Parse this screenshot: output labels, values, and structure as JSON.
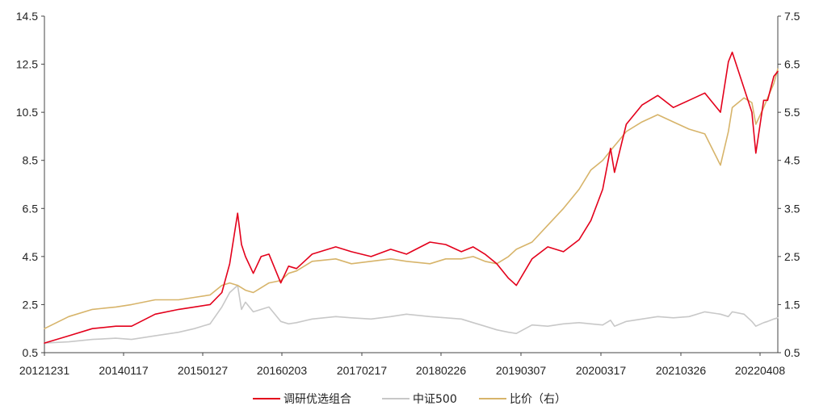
{
  "chart_data": {
    "type": "line",
    "title": "",
    "xlabel": "",
    "ylabel": "",
    "x_ticks": [
      "20121231",
      "20140117",
      "20150127",
      "20160203",
      "20170217",
      "20180226",
      "20190307",
      "20200317",
      "20210326",
      "20220408"
    ],
    "y_left": {
      "ticks": [
        "0.5",
        "2.5",
        "4.5",
        "6.5",
        "8.5",
        "10.5",
        "12.5",
        "14.5"
      ],
      "ylim": [
        0.5,
        14.5
      ]
    },
    "y_right": {
      "ticks": [
        "0.5",
        "1.5",
        "2.5",
        "3.5",
        "4.5",
        "5.5",
        "6.5",
        "7.5"
      ],
      "ylim": [
        0.5,
        7.5
      ]
    },
    "grid": false,
    "legend_position": "bottom",
    "series": [
      {
        "name": "调研优选组合",
        "axis": "left",
        "color": "#e3001b",
        "x": [
          2012.99,
          2013.3,
          2013.6,
          2013.9,
          2014.1,
          2014.4,
          2014.7,
          2014.9,
          2015.1,
          2015.25,
          2015.35,
          2015.45,
          2015.5,
          2015.55,
          2015.65,
          2015.75,
          2015.85,
          2016.0,
          2016.1,
          2016.2,
          2016.4,
          2016.7,
          2016.9,
          2017.15,
          2017.4,
          2017.6,
          2017.9,
          2018.1,
          2018.3,
          2018.45,
          2018.6,
          2018.75,
          2018.9,
          2019.0,
          2019.2,
          2019.4,
          2019.6,
          2019.8,
          2019.95,
          2020.1,
          2020.2,
          2020.25,
          2020.4,
          2020.6,
          2020.8,
          2021.0,
          2021.2,
          2021.4,
          2021.6,
          2021.7,
          2021.75,
          2021.9,
          2022.0,
          2022.05,
          2022.15,
          2022.2,
          2022.28,
          2022.33
        ],
        "values": [
          0.9,
          1.2,
          1.5,
          1.6,
          1.6,
          2.1,
          2.3,
          2.4,
          2.5,
          3.0,
          4.2,
          6.3,
          5.0,
          4.5,
          3.8,
          4.5,
          4.6,
          3.4,
          4.1,
          4.0,
          4.6,
          4.9,
          4.7,
          4.5,
          4.8,
          4.6,
          5.1,
          5.0,
          4.7,
          4.9,
          4.6,
          4.2,
          3.6,
          3.3,
          4.4,
          4.9,
          4.7,
          5.2,
          6.0,
          7.3,
          9.0,
          8.0,
          10.0,
          10.8,
          11.2,
          10.7,
          11.0,
          11.3,
          10.5,
          12.6,
          13.0,
          11.5,
          10.5,
          8.8,
          11.0,
          11.0,
          12.0,
          12.2
        ]
      },
      {
        "name": "中证500",
        "axis": "left",
        "color": "#c8c8c8",
        "x": [
          2012.99,
          2013.3,
          2013.6,
          2013.9,
          2014.1,
          2014.4,
          2014.7,
          2014.9,
          2015.1,
          2015.25,
          2015.35,
          2015.45,
          2015.5,
          2015.55,
          2015.65,
          2015.75,
          2015.85,
          2016.0,
          2016.1,
          2016.2,
          2016.4,
          2016.7,
          2016.9,
          2017.15,
          2017.4,
          2017.6,
          2017.9,
          2018.1,
          2018.3,
          2018.45,
          2018.6,
          2018.75,
          2018.9,
          2019.0,
          2019.2,
          2019.4,
          2019.6,
          2019.8,
          2019.95,
          2020.1,
          2020.2,
          2020.25,
          2020.4,
          2020.6,
          2020.8,
          2021.0,
          2021.2,
          2021.4,
          2021.6,
          2021.7,
          2021.75,
          2021.9,
          2022.0,
          2022.05,
          2022.15,
          2022.2,
          2022.28,
          2022.33
        ],
        "values": [
          0.9,
          0.95,
          1.05,
          1.1,
          1.05,
          1.2,
          1.35,
          1.5,
          1.7,
          2.4,
          3.0,
          3.3,
          2.3,
          2.6,
          2.2,
          2.3,
          2.4,
          1.8,
          1.7,
          1.75,
          1.9,
          2.0,
          1.95,
          1.9,
          2.0,
          2.1,
          2.0,
          1.95,
          1.9,
          1.75,
          1.6,
          1.45,
          1.35,
          1.3,
          1.65,
          1.6,
          1.7,
          1.75,
          1.7,
          1.65,
          1.85,
          1.6,
          1.8,
          1.9,
          2.0,
          1.95,
          2.0,
          2.2,
          2.1,
          2.0,
          2.2,
          2.1,
          1.8,
          1.6,
          1.75,
          1.8,
          1.9,
          1.95
        ]
      },
      {
        "name": "比价（右）",
        "axis": "right",
        "color": "#d7b46a",
        "x": [
          2012.99,
          2013.3,
          2013.6,
          2013.9,
          2014.1,
          2014.4,
          2014.7,
          2014.9,
          2015.1,
          2015.25,
          2015.35,
          2015.45,
          2015.5,
          2015.55,
          2015.65,
          2015.75,
          2015.85,
          2016.0,
          2016.1,
          2016.2,
          2016.4,
          2016.7,
          2016.9,
          2017.15,
          2017.4,
          2017.6,
          2017.9,
          2018.1,
          2018.3,
          2018.45,
          2018.6,
          2018.75,
          2018.9,
          2019.0,
          2019.2,
          2019.4,
          2019.6,
          2019.8,
          2019.95,
          2020.1,
          2020.2,
          2020.25,
          2020.4,
          2020.6,
          2020.8,
          2021.0,
          2021.2,
          2021.4,
          2021.6,
          2021.7,
          2021.75,
          2021.9,
          2022.0,
          2022.05,
          2022.15,
          2022.2,
          2022.28,
          2022.33
        ],
        "values": [
          1.0,
          1.25,
          1.4,
          1.45,
          1.5,
          1.6,
          1.6,
          1.65,
          1.7,
          1.9,
          1.95,
          1.9,
          1.85,
          1.8,
          1.75,
          1.85,
          1.95,
          2.0,
          2.15,
          2.2,
          2.4,
          2.45,
          2.35,
          2.4,
          2.45,
          2.4,
          2.35,
          2.45,
          2.45,
          2.5,
          2.4,
          2.35,
          2.5,
          2.65,
          2.8,
          3.15,
          3.5,
          3.9,
          4.3,
          4.5,
          4.7,
          4.8,
          5.1,
          5.3,
          5.45,
          5.3,
          5.15,
          5.05,
          4.4,
          5.1,
          5.6,
          5.8,
          5.7,
          5.25,
          5.6,
          5.8,
          6.1,
          6.4
        ]
      }
    ]
  },
  "legend": {
    "items": [
      {
        "label": "调研优选组合",
        "color": "#e3001b"
      },
      {
        "label": "中证500",
        "color": "#c8c8c8"
      },
      {
        "label": "比价（右）",
        "color": "#d7b46a"
      }
    ]
  }
}
